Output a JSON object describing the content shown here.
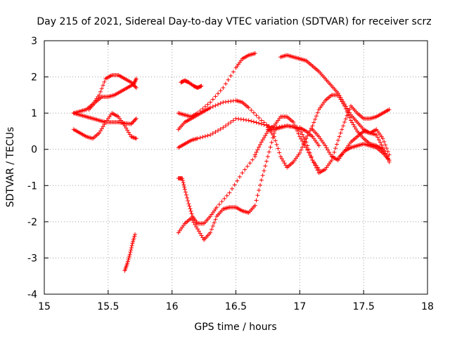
{
  "chart_data": {
    "type": "scatter",
    "title": "Day 215 of 2021, Sidereal Day-to-day VTEC variation (SDTVAR) for receiver scrz",
    "xlabel": "GPS time / hours",
    "ylabel": "SDTVAR / TECUs",
    "xlim": [
      15,
      18
    ],
    "ylim": [
      -4,
      3
    ],
    "xticks": [
      "15",
      "15.5",
      "16",
      "16.5",
      "17",
      "17.5",
      "18"
    ],
    "yticks": [
      "-4",
      "-3",
      "-2",
      "-1",
      "0",
      "1",
      "2",
      "3"
    ],
    "grid": true,
    "marker": "+",
    "color": "#ff0000",
    "series": [
      {
        "x": [
          15.23,
          15.28,
          15.33,
          15.38,
          15.43,
          15.48,
          15.53,
          15.58,
          15.63,
          15.68,
          15.72
        ],
        "y": [
          1.0,
          1.05,
          1.1,
          1.25,
          1.5,
          1.95,
          2.05,
          2.05,
          1.95,
          1.85,
          1.7
        ]
      },
      {
        "x": [
          15.23,
          15.28,
          15.33,
          15.38,
          15.43,
          15.48,
          15.53,
          15.58,
          15.63,
          15.68,
          15.72
        ],
        "y": [
          0.55,
          0.45,
          0.35,
          0.3,
          0.45,
          0.75,
          1.0,
          0.9,
          0.65,
          0.35,
          0.3
        ]
      },
      {
        "x": [
          15.23,
          15.28,
          15.33,
          15.38,
          15.43,
          15.48,
          15.53,
          15.58,
          15.63,
          15.68,
          15.72
        ],
        "y": [
          1.0,
          0.95,
          0.9,
          0.85,
          0.8,
          0.75,
          0.75,
          0.75,
          0.72,
          0.7,
          0.85
        ]
      },
      {
        "x": [
          15.35,
          15.4,
          15.45,
          15.5,
          15.55,
          15.6,
          15.65,
          15.7,
          15.72
        ],
        "y": [
          1.1,
          1.3,
          1.45,
          1.45,
          1.5,
          1.6,
          1.7,
          1.8,
          1.95
        ]
      },
      {
        "x": [
          15.63,
          15.65,
          15.67,
          15.69,
          15.71
        ],
        "y": [
          -3.35,
          -3.15,
          -2.9,
          -2.6,
          -2.35
        ]
      },
      {
        "x": [
          16.07,
          16.1,
          16.13,
          16.17,
          16.2,
          16.23
        ],
        "y": [
          1.85,
          1.9,
          1.85,
          1.75,
          1.7,
          1.75
        ]
      },
      {
        "x": [
          16.05,
          16.1,
          16.15,
          16.2,
          16.3,
          16.4,
          16.5,
          16.55,
          16.6,
          16.65
        ],
        "y": [
          1.0,
          0.95,
          0.9,
          1.0,
          1.3,
          1.7,
          2.25,
          2.5,
          2.6,
          2.65
        ]
      },
      {
        "x": [
          16.05,
          16.1,
          16.15,
          16.2,
          16.25,
          16.3,
          16.4,
          16.5,
          16.55,
          16.6,
          16.7,
          16.8
        ],
        "y": [
          0.55,
          0.75,
          0.85,
          0.95,
          1.05,
          1.15,
          1.3,
          1.35,
          1.3,
          1.15,
          0.8,
          0.5
        ]
      },
      {
        "x": [
          16.05,
          16.1,
          16.15,
          16.2,
          16.3,
          16.4,
          16.5,
          16.6,
          16.7,
          16.8,
          16.9,
          17.0,
          17.05,
          17.1,
          17.15
        ],
        "y": [
          0.05,
          0.15,
          0.25,
          0.3,
          0.4,
          0.6,
          0.85,
          0.8,
          0.7,
          0.6,
          0.65,
          0.6,
          0.5,
          0.35,
          0.1
        ]
      },
      {
        "x": [
          16.05,
          16.1,
          16.15,
          16.2,
          16.25,
          16.3,
          16.35,
          16.4,
          16.45,
          16.5,
          16.55,
          16.6,
          16.65,
          16.7,
          16.75,
          16.8
        ],
        "y": [
          -2.3,
          -2.05,
          -1.9,
          -2.2,
          -2.5,
          -2.3,
          -1.85,
          -1.65,
          -1.6,
          -1.6,
          -1.7,
          -1.75,
          -1.55,
          -0.85,
          -0.2,
          0.45
        ]
      },
      {
        "x": [
          16.05,
          16.08,
          16.1,
          16.13,
          16.16,
          16.2,
          16.25,
          16.3,
          16.35,
          16.45,
          16.55,
          16.65
        ],
        "y": [
          -0.8,
          -0.8,
          -1.1,
          -1.5,
          -1.85,
          -2.05,
          -2.05,
          -1.85,
          -1.6,
          -1.2,
          -0.65,
          -0.2
        ]
      },
      {
        "x": [
          16.65,
          16.7,
          16.75,
          16.8,
          16.85,
          16.9,
          16.95,
          17.0,
          17.05,
          17.1,
          17.15
        ],
        "y": [
          -0.15,
          0.2,
          0.5,
          0.65,
          0.9,
          0.9,
          0.75,
          0.35,
          0.05,
          -0.3,
          -0.55
        ]
      },
      {
        "x": [
          16.75,
          16.8,
          16.85,
          16.9,
          16.95,
          17.0,
          17.05,
          17.1,
          17.15,
          17.2,
          17.25,
          17.3,
          17.35,
          17.4,
          17.45,
          17.5,
          17.55,
          17.6,
          17.65,
          17.7
        ],
        "y": [
          0.55,
          0.55,
          0.6,
          0.65,
          0.62,
          0.55,
          0.2,
          -0.3,
          -0.65,
          -0.55,
          -0.3,
          0.25,
          0.75,
          1.2,
          1.0,
          0.85,
          0.85,
          0.9,
          1.0,
          1.1
        ]
      },
      {
        "x": [
          16.75,
          16.8,
          16.85,
          16.9,
          16.95,
          17.0,
          17.05,
          17.1,
          17.15,
          17.2,
          17.25,
          17.3,
          17.35,
          17.4,
          17.45,
          17.5,
          17.55,
          17.6,
          17.65,
          17.7
        ],
        "y": [
          0.6,
          0.35,
          -0.2,
          -0.5,
          -0.35,
          -0.1,
          0.3,
          0.65,
          1.1,
          1.35,
          1.5,
          1.5,
          1.2,
          0.8,
          0.5,
          0.3,
          0.15,
          0.1,
          0.0,
          -0.3
        ]
      },
      {
        "x": [
          16.85,
          16.9,
          16.95,
          17.0,
          17.05,
          17.1,
          17.15,
          17.2,
          17.25,
          17.3,
          17.35,
          17.4,
          17.45,
          17.5,
          17.55,
          17.6,
          17.65,
          17.7
        ],
        "y": [
          2.55,
          2.6,
          2.55,
          2.5,
          2.45,
          2.3,
          2.15,
          1.95,
          1.75,
          1.55,
          1.25,
          0.95,
          0.75,
          0.55,
          0.45,
          0.4,
          0.05,
          -0.35
        ]
      },
      {
        "x": [
          17.1,
          17.15,
          17.2,
          17.25,
          17.3,
          17.35,
          17.4,
          17.45,
          17.5,
          17.55,
          17.6,
          17.65,
          17.7
        ],
        "y": [
          0.55,
          0.35,
          0.1,
          -0.2,
          -0.3,
          -0.05,
          0.05,
          0.1,
          0.15,
          0.1,
          0.05,
          -0.1,
          -0.3
        ]
      },
      {
        "x": [
          17.3,
          17.35,
          17.4,
          17.45,
          17.5,
          17.55,
          17.6,
          17.65,
          17.7
        ],
        "y": [
          -0.25,
          -0.05,
          0.2,
          0.35,
          0.5,
          0.45,
          0.55,
          0.3,
          -0.15
        ]
      }
    ]
  }
}
